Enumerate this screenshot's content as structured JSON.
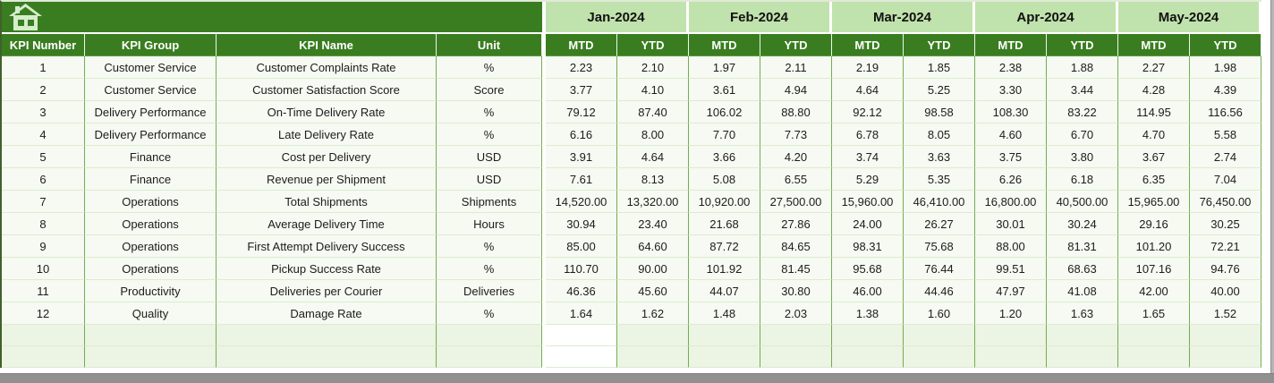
{
  "table": {
    "left_headers": [
      "KPI Number",
      "KPI Group",
      "KPI Name",
      "Unit"
    ],
    "months": [
      "Jan-2024",
      "Feb-2024",
      "Mar-2024",
      "Apr-2024",
      "May-2024"
    ],
    "period_headers": [
      "MTD",
      "YTD"
    ],
    "rows": [
      {
        "kpi_number": "1",
        "kpi_group": "Customer Service",
        "kpi_name": "Customer Complaints Rate",
        "unit": "%",
        "values": [
          "2.23",
          "2.10",
          "1.97",
          "2.11",
          "2.19",
          "1.85",
          "2.38",
          "1.88",
          "2.27",
          "1.98"
        ]
      },
      {
        "kpi_number": "2",
        "kpi_group": "Customer Service",
        "kpi_name": "Customer Satisfaction Score",
        "unit": "Score",
        "values": [
          "3.77",
          "4.10",
          "3.61",
          "4.94",
          "4.64",
          "5.25",
          "3.30",
          "3.44",
          "4.28",
          "4.39"
        ]
      },
      {
        "kpi_number": "3",
        "kpi_group": "Delivery Performance",
        "kpi_name": "On-Time Delivery Rate",
        "unit": "%",
        "values": [
          "79.12",
          "87.40",
          "106.02",
          "88.80",
          "92.12",
          "98.58",
          "108.30",
          "83.22",
          "114.95",
          "116.56"
        ]
      },
      {
        "kpi_number": "4",
        "kpi_group": "Delivery Performance",
        "kpi_name": "Late Delivery Rate",
        "unit": "%",
        "values": [
          "6.16",
          "8.00",
          "7.70",
          "7.73",
          "6.78",
          "8.05",
          "4.60",
          "6.70",
          "4.70",
          "5.58"
        ]
      },
      {
        "kpi_number": "5",
        "kpi_group": "Finance",
        "kpi_name": "Cost per Delivery",
        "unit": "USD",
        "values": [
          "3.91",
          "4.64",
          "3.66",
          "4.20",
          "3.74",
          "3.63",
          "3.75",
          "3.80",
          "3.67",
          "2.74"
        ]
      },
      {
        "kpi_number": "6",
        "kpi_group": "Finance",
        "kpi_name": "Revenue per Shipment",
        "unit": "USD",
        "values": [
          "7.61",
          "8.13",
          "5.08",
          "6.55",
          "5.29",
          "5.35",
          "6.26",
          "6.18",
          "6.35",
          "7.04"
        ]
      },
      {
        "kpi_number": "7",
        "kpi_group": "Operations",
        "kpi_name": "Total Shipments",
        "unit": "Shipments",
        "values": [
          "14,520.00",
          "13,320.00",
          "10,920.00",
          "27,500.00",
          "15,960.00",
          "46,410.00",
          "16,800.00",
          "40,500.00",
          "15,965.00",
          "76,450.00"
        ]
      },
      {
        "kpi_number": "8",
        "kpi_group": "Operations",
        "kpi_name": "Average Delivery Time",
        "unit": "Hours",
        "values": [
          "30.94",
          "23.40",
          "21.68",
          "27.86",
          "24.00",
          "26.27",
          "30.01",
          "30.24",
          "29.16",
          "30.25"
        ]
      },
      {
        "kpi_number": "9",
        "kpi_group": "Operations",
        "kpi_name": "First Attempt Delivery Success",
        "unit": "%",
        "values": [
          "85.00",
          "64.60",
          "87.72",
          "84.65",
          "98.31",
          "75.68",
          "88.00",
          "81.31",
          "101.20",
          "72.21"
        ]
      },
      {
        "kpi_number": "10",
        "kpi_group": "Operations",
        "kpi_name": "Pickup Success Rate",
        "unit": "%",
        "values": [
          "110.70",
          "90.00",
          "101.92",
          "81.45",
          "95.68",
          "76.44",
          "99.51",
          "68.63",
          "107.16",
          "94.76"
        ]
      },
      {
        "kpi_number": "11",
        "kpi_group": "Productivity",
        "kpi_name": "Deliveries per Courier",
        "unit": "Deliveries",
        "values": [
          "46.36",
          "45.60",
          "44.07",
          "30.80",
          "46.00",
          "44.46",
          "47.97",
          "41.08",
          "42.00",
          "40.00"
        ]
      },
      {
        "kpi_number": "12",
        "kpi_group": "Quality",
        "kpi_name": "Damage Rate",
        "unit": "%",
        "values": [
          "1.64",
          "1.62",
          "1.48",
          "2.03",
          "1.38",
          "1.60",
          "1.20",
          "1.63",
          "1.65",
          "1.52"
        ]
      }
    ],
    "empty_row_count": 2
  },
  "icons": {
    "home_icon": "home-icon"
  },
  "colors": {
    "header_dark_green": "#3a7d21",
    "month_light_green": "#c0e2ac",
    "row_background": "#f6faf2",
    "empty_row_background": "#ecf4e4",
    "grid_vertical_green": "#74ad52",
    "grid_horizontal_pale": "#dcecd0",
    "scrollbar_gray": "#909090"
  }
}
